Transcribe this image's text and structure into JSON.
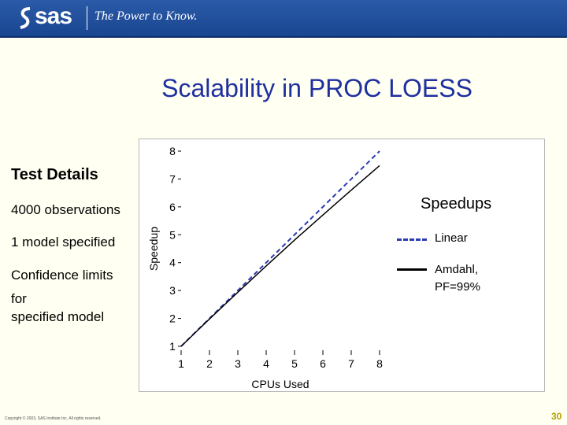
{
  "header": {
    "logo": "sas",
    "tagline": "The Power to Know."
  },
  "slide": {
    "title": "Scalability in PROC LOESS",
    "details_heading": "Test Details",
    "details": [
      "4000 observations",
      "1 model specified",
      "Confidence limits",
      "for",
      "specified model"
    ],
    "copyright": "Copyright © 2003, SAS Institute Inc. All rights reserved.",
    "page_number": "30"
  },
  "colors": {
    "header": "#2a5aa8",
    "title": "#1f2f9f",
    "linear": "#2b3bb0",
    "amdahl": "#000000"
  },
  "chart_data": {
    "type": "line",
    "xlabel": "CPUs Used",
    "ylabel": "Speedup",
    "xlim": [
      1,
      8
    ],
    "ylim": [
      1,
      8
    ],
    "x_ticks": [
      "1",
      "2",
      "3",
      "4",
      "5",
      "6",
      "7",
      "8"
    ],
    "y_ticks": [
      "1",
      "2",
      "3",
      "4",
      "5",
      "6",
      "7",
      "8"
    ],
    "legend_title": "Speedups",
    "series": [
      {
        "name": "Linear",
        "style": "dashed",
        "x": [
          1,
          2,
          3,
          4,
          5,
          6,
          7,
          8
        ],
        "y": [
          1,
          2,
          3,
          4,
          5,
          6,
          7,
          8
        ]
      },
      {
        "name": "Amdahl, PF=99%",
        "style": "solid",
        "x": [
          1,
          2,
          3,
          4,
          5,
          6,
          7,
          8
        ],
        "y": [
          1,
          1.98,
          2.94,
          3.88,
          4.81,
          5.71,
          6.6,
          7.48
        ]
      }
    ]
  }
}
